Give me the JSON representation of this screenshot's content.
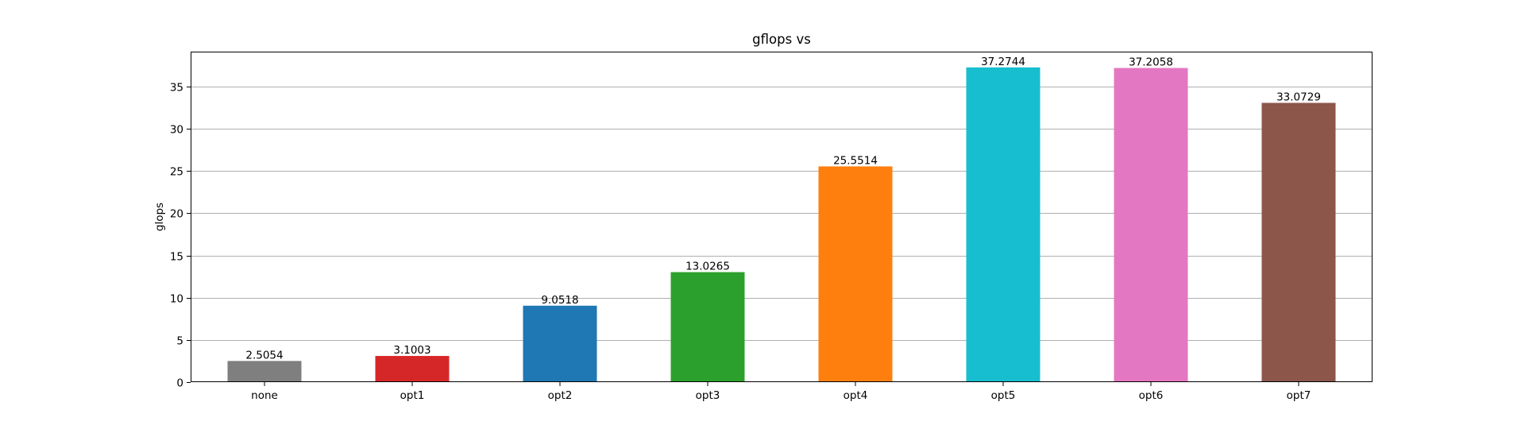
{
  "chart_data": {
    "type": "bar",
    "title": "gflops vs",
    "xlabel": "",
    "ylabel": "glops",
    "ylim": [
      0,
      39.14
    ],
    "yticks": [
      0,
      5,
      10,
      15,
      20,
      25,
      30,
      35
    ],
    "grid": "y",
    "legend": "none",
    "categories": [
      "none",
      "opt1",
      "opt2",
      "opt3",
      "opt4",
      "opt5",
      "opt6",
      "opt7"
    ],
    "values": [
      2.5054,
      3.1003,
      9.0518,
      13.0265,
      25.5514,
      37.2744,
      37.2058,
      33.0729
    ],
    "value_labels": [
      "2.5054",
      "3.1003",
      "9.0518",
      "13.0265",
      "25.5514",
      "37.2744",
      "37.2058",
      "33.0729"
    ],
    "colors": [
      "#7f7f7f",
      "#d62728",
      "#1f77b4",
      "#2ca02c",
      "#ff7f0e",
      "#17becf",
      "#e377c2",
      "#8c564b"
    ]
  }
}
